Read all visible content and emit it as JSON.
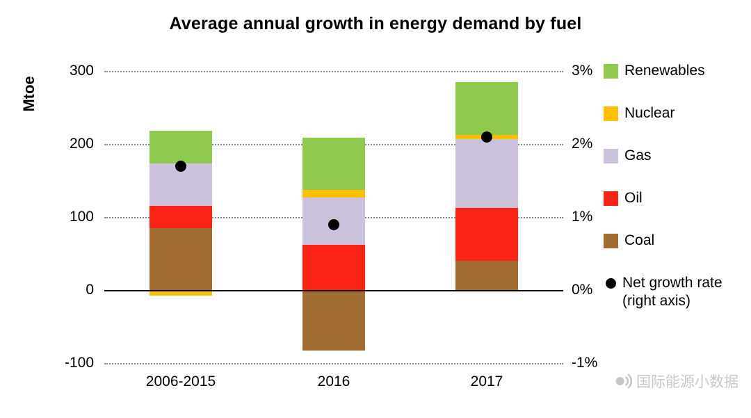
{
  "title": "Average annual growth in energy demand by fuel",
  "watermark": {
    "icon": "broadcast-icon",
    "text": "国际能源小数据",
    "color": "#c7c7c7"
  },
  "chart_data": {
    "type": "bar",
    "stacked": true,
    "title": "Average annual growth in energy demand by fuel",
    "categories": [
      "2006-2015",
      "2016",
      "2017"
    ],
    "series": [
      {
        "name": "Coal",
        "values": [
          85,
          -83,
          40
        ],
        "color": "#A16C2F"
      },
      {
        "name": "Oil",
        "values": [
          30,
          62,
          72
        ],
        "color": "#FB2416"
      },
      {
        "name": "Gas",
        "values": [
          58,
          65,
          95
        ],
        "color": "#CCC2DC"
      },
      {
        "name": "Nuclear",
        "values": [
          -8,
          10,
          5
        ],
        "color": "#FFC000"
      },
      {
        "name": "Renewables",
        "values": [
          45,
          72,
          73
        ],
        "color": "#8FC94D"
      }
    ],
    "point_series": {
      "name": "Net growth rate (right axis)",
      "axis": "right",
      "values_percent": [
        1.7,
        0.9,
        2.1
      ],
      "color": "#000000"
    },
    "left_axis": {
      "label": "Mtoe",
      "min": -100,
      "max": 300,
      "ticks": [
        300,
        200,
        100,
        0,
        -100
      ]
    },
    "right_axis": {
      "min": -1,
      "max": 3,
      "ticks": [
        "3%",
        "2%",
        "1%",
        "0%",
        "-1%"
      ],
      "tick_values": [
        3,
        2,
        1,
        0,
        -1
      ]
    },
    "grid": {
      "horizontal": "dotted",
      "zero_line": "solid"
    },
    "legend": {
      "position": "right",
      "items": [
        {
          "label": "Renewables",
          "color": "#8FC94D",
          "marker": "square"
        },
        {
          "label": "Nuclear",
          "color": "#FFC000",
          "marker": "square"
        },
        {
          "label": "Gas",
          "color": "#CCC2DC",
          "marker": "square"
        },
        {
          "label": "Oil",
          "color": "#FB2416",
          "marker": "square"
        },
        {
          "label": "Coal",
          "color": "#A16C2F",
          "marker": "square"
        },
        {
          "label": "Net growth rate (right axis)",
          "label_lines": [
            "Net growth rate",
            "(right axis)"
          ],
          "color": "#000000",
          "marker": "circle"
        }
      ]
    }
  }
}
